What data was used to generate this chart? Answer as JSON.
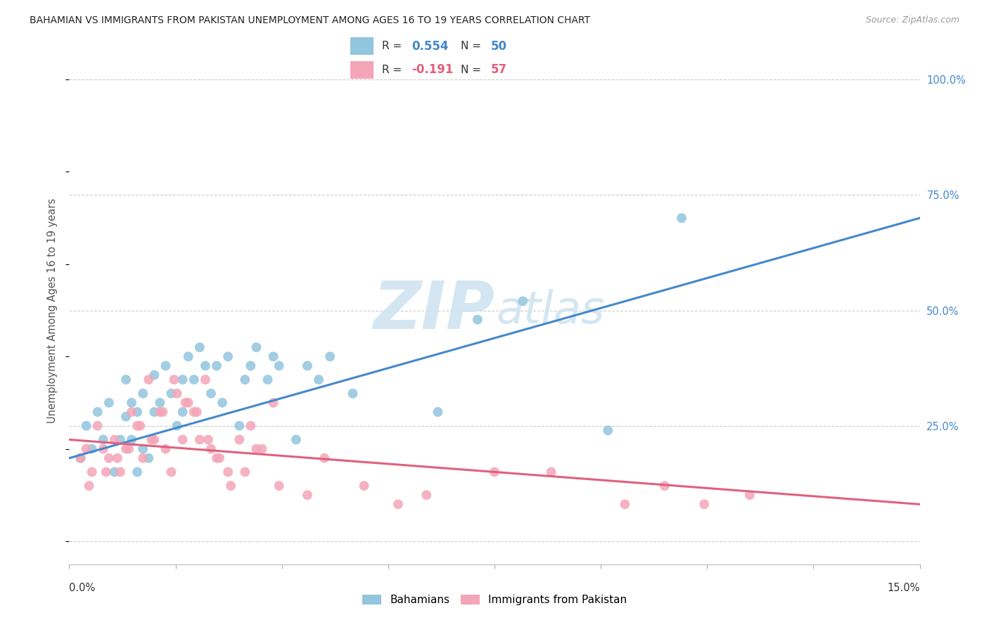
{
  "title": "BAHAMIAN VS IMMIGRANTS FROM PAKISTAN UNEMPLOYMENT AMONG AGES 16 TO 19 YEARS CORRELATION CHART",
  "source": "Source: ZipAtlas.com",
  "ylabel": "Unemployment Among Ages 16 to 19 years",
  "xlim": [
    0.0,
    15.0
  ],
  "ylim": [
    -5.0,
    105.0
  ],
  "blue_R": 0.554,
  "blue_N": 50,
  "pink_R": -0.191,
  "pink_N": 57,
  "blue_color": "#92c5de",
  "pink_color": "#f4a5b8",
  "blue_line_color": "#4488cc",
  "pink_line_color": "#e06080",
  "watermark_color": "#d0e4f0",
  "legend_label_blue": "Bahamians",
  "legend_label_pink": "Immigrants from Pakistan",
  "background_color": "#ffffff",
  "grid_color": "#cccccc",
  "title_color": "#222222",
  "right_ytick_color": "#4488cc",
  "blue_scatter_x": [
    0.2,
    0.3,
    0.4,
    0.5,
    0.6,
    0.7,
    0.8,
    0.9,
    1.0,
    1.0,
    1.1,
    1.1,
    1.2,
    1.2,
    1.3,
    1.3,
    1.4,
    1.5,
    1.5,
    1.6,
    1.7,
    1.8,
    1.9,
    2.0,
    2.0,
    2.1,
    2.2,
    2.3,
    2.4,
    2.5,
    2.6,
    2.7,
    2.8,
    3.0,
    3.1,
    3.2,
    3.3,
    3.5,
    3.6,
    3.7,
    4.0,
    4.2,
    4.4,
    4.6,
    5.0,
    6.5,
    7.2,
    8.0,
    9.5,
    10.8
  ],
  "blue_scatter_y": [
    18,
    25,
    20,
    28,
    22,
    30,
    15,
    22,
    27,
    35,
    30,
    22,
    28,
    15,
    32,
    20,
    18,
    28,
    36,
    30,
    38,
    32,
    25,
    35,
    28,
    40,
    35,
    42,
    38,
    32,
    38,
    30,
    40,
    25,
    35,
    38,
    42,
    35,
    40,
    38,
    22,
    38,
    35,
    40,
    32,
    28,
    48,
    52,
    24,
    70
  ],
  "pink_scatter_x": [
    0.2,
    0.3,
    0.4,
    0.5,
    0.6,
    0.7,
    0.8,
    0.9,
    1.0,
    1.1,
    1.2,
    1.3,
    1.4,
    1.5,
    1.6,
    1.7,
    1.8,
    1.9,
    2.0,
    2.1,
    2.2,
    2.3,
    2.4,
    2.5,
    2.6,
    2.8,
    3.0,
    3.2,
    3.4,
    3.6,
    0.35,
    0.65,
    0.85,
    1.05,
    1.25,
    1.45,
    1.65,
    1.85,
    2.05,
    2.25,
    2.45,
    2.65,
    2.85,
    3.1,
    3.3,
    3.7,
    4.2,
    4.5,
    5.2,
    5.8,
    6.3,
    7.5,
    8.5,
    9.8,
    10.5,
    11.2,
    12.0
  ],
  "pink_scatter_y": [
    18,
    20,
    15,
    25,
    20,
    18,
    22,
    15,
    20,
    28,
    25,
    18,
    35,
    22,
    28,
    20,
    15,
    32,
    22,
    30,
    28,
    22,
    35,
    20,
    18,
    15,
    22,
    25,
    20,
    30,
    12,
    15,
    18,
    20,
    25,
    22,
    28,
    35,
    30,
    28,
    22,
    18,
    12,
    15,
    20,
    12,
    10,
    18,
    12,
    8,
    10,
    15,
    15,
    8,
    12,
    8,
    10
  ],
  "blue_line_x0": 0.0,
  "blue_line_y0": 18.0,
  "blue_line_x1": 15.0,
  "blue_line_y1": 70.0,
  "pink_line_x0": 0.0,
  "pink_line_y0": 22.0,
  "pink_line_x1": 15.0,
  "pink_line_y1": 8.0
}
